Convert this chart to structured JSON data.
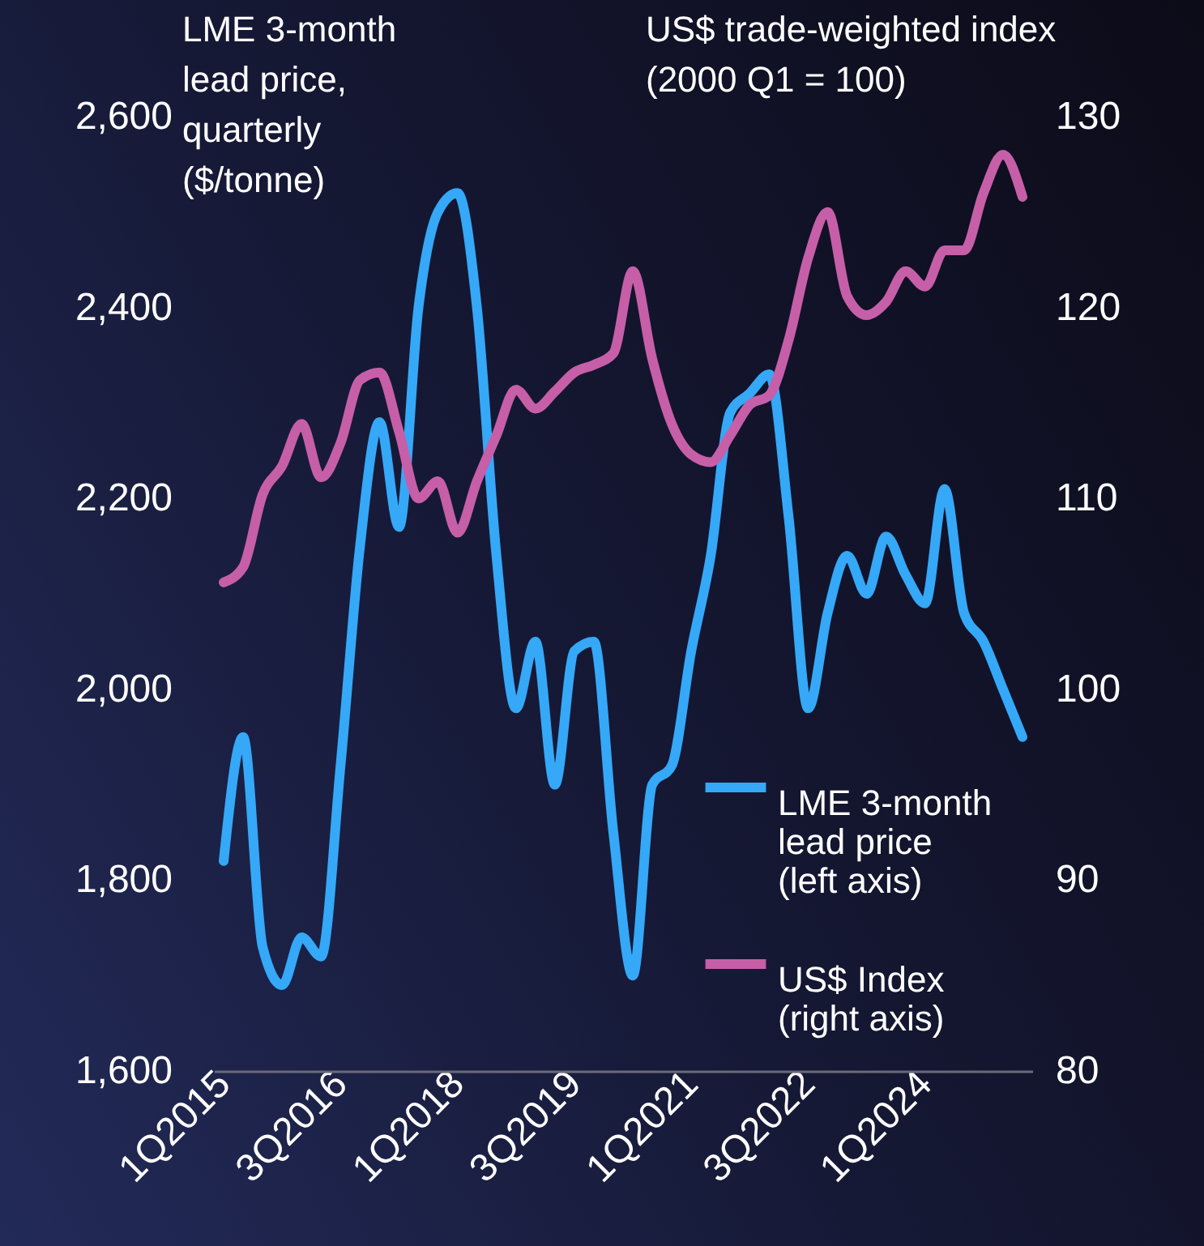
{
  "chart_data": {
    "type": "line",
    "ylabel": "LME 3-month lead price, quarterly ($/tonne)",
    "y2label": "US$ trade-weighted index (2000 Q1 = 100)",
    "categories": [
      "1Q2015",
      null,
      null,
      null,
      null,
      null,
      "3Q2016",
      null,
      null,
      null,
      null,
      null,
      "1Q2018",
      null,
      null,
      null,
      null,
      null,
      "3Q2019",
      null,
      null,
      null,
      null,
      null,
      "1Q2021",
      null,
      null,
      null,
      null,
      null,
      "3Q2022",
      null,
      null,
      null,
      null,
      null,
      "1Q2024",
      null,
      null,
      null,
      null,
      null
    ],
    "series": [
      {
        "name": "LME 3-month lead price (left axis)",
        "color": "#35a8f8",
        "values": [
          1820,
          1950,
          1730,
          1690,
          1740,
          1720,
          1920,
          2150,
          2280,
          2170,
          2400,
          2500,
          2520,
          2400,
          2140,
          1980,
          2050,
          1900,
          2040,
          2050,
          1850,
          1700,
          1900,
          1920,
          2040,
          2140,
          2290,
          2310,
          2330,
          2180,
          1980,
          2080,
          2140,
          2100,
          2160,
          2120,
          2090,
          2210,
          2080,
          2050,
          2000,
          1950
        ]
      },
      {
        "name": "US$ Index (right axis)",
        "color": "#c65fa8",
        "axis": "y2",
        "values": [
          105.6,
          106.4,
          110.2,
          111.7,
          113.9,
          111.1,
          112.9,
          116.2,
          116.6,
          113.5,
          110.0,
          110.9,
          108.2,
          110.9,
          113.3,
          115.7,
          114.7,
          115.6,
          116.6,
          117.0,
          117.6,
          121.9,
          117.3,
          113.9,
          112.3,
          111.9,
          113.3,
          114.9,
          115.4,
          118.3,
          122.6,
          125.0,
          120.6,
          119.6,
          120.3,
          121.9,
          121.1,
          123.0,
          123.0,
          126.0,
          128.0,
          125.8
        ]
      }
    ],
    "ylim": [
      1600,
      2600
    ],
    "yticks": [
      {
        "value": 1600,
        "label": "1,600"
      },
      {
        "value": 1800,
        "label": "1,800"
      },
      {
        "value": 2000,
        "label": "2,000"
      },
      {
        "value": 2200,
        "label": "2,200"
      },
      {
        "value": 2400,
        "label": "2,400"
      },
      {
        "value": 2600,
        "label": "2,600"
      }
    ],
    "y2lim": [
      80,
      130
    ],
    "y2ticks": [
      80,
      90,
      100,
      110,
      120,
      130
    ],
    "legend": "bottom right"
  }
}
